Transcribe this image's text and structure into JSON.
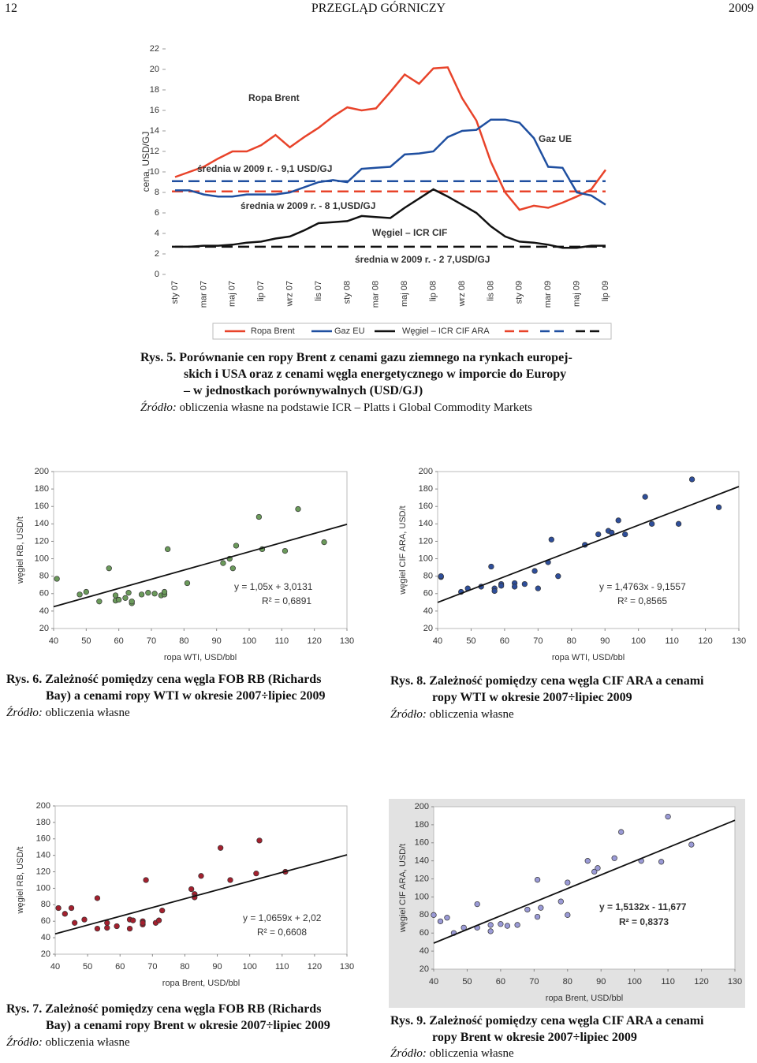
{
  "header": {
    "page": "12",
    "journal": "PRZEGLĄD GÓRNICZY",
    "year": "2009"
  },
  "figures": [
    {
      "label": "Rys. 5.",
      "caption": [
        "Porównanie cen ropy Brent z cenami gazu ziemnego na rynkach europej-",
        "skich i USA oraz z cenami węgla energetycznego w imporcie do Europy",
        "– w jednostkach porównywalnych (USD/GJ)"
      ],
      "source_label": "Źródło:",
      "source": "obliczenia własne na podstawie ICR – Platts i Global Commodity Markets",
      "chart_data": {
        "type": "line",
        "ylabel": "cena, USD/GJ",
        "categories": [
          "sty 07",
          null,
          "mar 07",
          null,
          "maj 07",
          null,
          "lip 07",
          null,
          "wrz 07",
          null,
          "lis 07",
          null,
          "sty 08",
          null,
          "mar 08",
          null,
          "maj 08",
          null,
          "lip 08",
          null,
          "wrz 08",
          null,
          "lis 08",
          null,
          "sty 09",
          null,
          "mar 09",
          null,
          "maj 09",
          null,
          "lip 09"
        ],
        "ylim": [
          0,
          22
        ],
        "yticks": [
          0,
          2,
          4,
          6,
          8,
          10,
          12,
          14,
          16,
          18,
          20,
          22
        ],
        "grid": false,
        "series": [
          {
            "name": "Ropa Brent",
            "color": "#e8432a",
            "values": [
              9.5,
              10,
              10.5,
              11.3,
              12,
              12,
              12.6,
              13.6,
              12.4,
              13.4,
              14.3,
              15.4,
              16.3,
              16,
              16.2,
              17.8,
              19.5,
              18.6,
              20.1,
              20.2,
              17.2,
              15,
              11,
              8,
              6.3,
              6.7,
              6.5,
              7,
              7.6,
              8.3,
              10.2
            ]
          },
          {
            "name": "Gaz EU",
            "color": "#1f4fa0",
            "values": [
              8.2,
              8.2,
              7.8,
              7.6,
              7.6,
              7.8,
              7.8,
              7.8,
              8,
              8.5,
              9,
              9.2,
              9,
              10.3,
              10.4,
              10.5,
              11.7,
              11.8,
              12,
              13.4,
              14,
              14.1,
              15.1,
              15.1,
              14.8,
              13.3,
              10.5,
              10.4,
              8,
              7.7,
              6.8
            ]
          },
          {
            "name": "Węgiel – ICR CIF ARA",
            "color": "#111111",
            "values": [
              2.7,
              2.7,
              2.8,
              2.8,
              2.9,
              3.1,
              3.2,
              3.5,
              3.7,
              4.3,
              5,
              5.1,
              5.2,
              5.7,
              5.6,
              5.5,
              6.5,
              7.4,
              8.3,
              7.6,
              6.8,
              6,
              4.7,
              3.7,
              3.2,
              3.1,
              2.9,
              2.6,
              2.6,
              2.8,
              2.8
            ]
          }
        ],
        "averages": [
          {
            "color": "#e8432a",
            "value": 8.1
          },
          {
            "color": "#1f4fa0",
            "value": 9.1
          },
          {
            "color": "#111111",
            "value": 2.7
          }
        ],
        "annotations": [
          {
            "text": "Ropa Brent",
            "color": "#e8432a"
          },
          {
            "text": "Gaz UE",
            "color": "#1f4fa0"
          },
          {
            "text": "średnia w 2009 r. - 9,1 USD/GJ",
            "color": "#c0302a"
          },
          {
            "text": "średnia w 2009 r. - 8 1,USD/GJ",
            "color": "#e8432a"
          },
          {
            "text": "Węgiel – ICR CIF",
            "color": "#111111"
          },
          {
            "text": "średnia w 2009 r. - 2 7,USD/GJ",
            "color": "#111111"
          }
        ]
      }
    },
    {
      "label": "Rys. 6.",
      "caption": [
        "Zależność pomiędzy cena węgla FOB RB (Richards",
        "Bay) a cenami ropy WTI w okresie 2007÷lipiec 2009"
      ],
      "source_label": "Źródło:",
      "source": "obliczenia własne",
      "chart_data": {
        "type": "scatter",
        "xlabel": "ropa WTI, USD/bbl",
        "ylabel": "węgiel RB, USD/t",
        "color": "#6b9a5b",
        "xlim": [
          40,
          130
        ],
        "xticks": [
          40,
          50,
          60,
          70,
          80,
          90,
          100,
          110,
          120,
          130
        ],
        "ylim": [
          20,
          200
        ],
        "yticks": [
          20,
          40,
          60,
          80,
          100,
          120,
          140,
          160,
          180,
          200
        ],
        "grid": false,
        "x": [
          41,
          48,
          50,
          54,
          57,
          59,
          59,
          60,
          62,
          63,
          64,
          64,
          67,
          69,
          71,
          73,
          74,
          74,
          75,
          81,
          92,
          94,
          95,
          96,
          103,
          104,
          111,
          115,
          123
        ],
        "y": [
          77,
          59,
          62,
          51,
          89,
          58,
          52,
          53,
          55,
          61,
          49,
          51,
          59,
          61,
          60,
          58,
          59,
          62,
          111,
          72,
          95,
          100,
          89,
          115,
          148,
          111,
          109,
          157,
          119
        ],
        "trendline": {
          "x": [
            40,
            130
          ],
          "y": [
            45,
            139.5
          ]
        },
        "equation": "y = 1,05x + 3,0131",
        "r2": "R² = 0,6891"
      }
    },
    {
      "label": "Rys. 8.",
      "caption": [
        "Zależność pomiędzy cena węgla CIF ARA a cenami",
        "ropy WTI w okresie 2007÷lipiec 2009"
      ],
      "source_label": "Źródło:",
      "source": "obliczenia własne",
      "chart_data": {
        "type": "scatter",
        "xlabel": "ropa WTI, USD/bbl",
        "ylabel": "węgiel CIF ARA, USD/t",
        "color": "#2e4e9a",
        "xlim": [
          40,
          130
        ],
        "xticks": [
          40,
          50,
          60,
          70,
          80,
          90,
          100,
          110,
          120,
          130
        ],
        "ylim": [
          20,
          200
        ],
        "yticks": [
          20,
          40,
          60,
          80,
          100,
          120,
          140,
          160,
          180,
          200
        ],
        "grid": false,
        "x": [
          41,
          41,
          47,
          49,
          53,
          56,
          57,
          57,
          59,
          59,
          63,
          63,
          66,
          69,
          70,
          73,
          74,
          76,
          84,
          88,
          91,
          92,
          94,
          96,
          102,
          104,
          112,
          116,
          124
        ],
        "y": [
          79,
          80,
          62,
          66,
          68,
          91,
          66,
          63,
          71,
          69,
          72,
          68,
          71,
          86,
          66,
          96,
          122,
          80,
          116,
          128,
          132,
          130,
          144,
          128,
          171,
          140,
          140,
          191,
          159
        ],
        "trendline": {
          "x": [
            40,
            130
          ],
          "y": [
            49.9,
            182.8
          ]
        },
        "equation": "y = 1,4763x - 9,1557",
        "r2": "R² = 0,8565"
      }
    },
    {
      "label": "Rys. 7.",
      "caption": [
        "Zależność pomiędzy cena węgla FOB RB (Richards",
        "Bay) a cenami ropy Brent w okresie 2007÷lipiec 2009"
      ],
      "source_label": "Źródło:",
      "source": "obliczenia własne",
      "chart_data": {
        "type": "scatter",
        "xlabel": "ropa Brent, USD/bbl",
        "ylabel": "węgiel RB, USD/t",
        "color": "#a3202e",
        "xlim": [
          40,
          130
        ],
        "xticks": [
          40,
          50,
          60,
          70,
          80,
          90,
          100,
          110,
          120,
          130
        ],
        "ylim": [
          20,
          200
        ],
        "yticks": [
          20,
          40,
          60,
          80,
          100,
          120,
          140,
          160,
          180,
          200
        ],
        "grid": false,
        "x": [
          41,
          43,
          45,
          46,
          49,
          53,
          53,
          56,
          56,
          59,
          63,
          63,
          64,
          67,
          67,
          67,
          68,
          71,
          72,
          73,
          82,
          83,
          83,
          85,
          91,
          94,
          102,
          103,
          111
        ],
        "y": [
          76,
          69,
          76,
          58,
          62,
          88,
          51,
          52,
          58,
          54,
          62,
          51,
          61,
          60,
          56,
          58,
          110,
          58,
          61,
          73,
          99,
          93,
          89,
          115,
          149,
          110,
          118,
          158,
          120
        ],
        "trendline": {
          "x": [
            40,
            130
          ],
          "y": [
            44.7,
            140.6
          ]
        },
        "equation": "y = 1,0659x + 2,02",
        "r2": "R² = 0,6608"
      }
    },
    {
      "label": "Rys. 9.",
      "caption": [
        "Zależność pomiędzy cena węgla CIF ARA a cenami",
        "ropy Brent w okresie 2007÷lipiec 2009"
      ],
      "source_label": "Źródło:",
      "source": "obliczenia własne",
      "chart_data": {
        "type": "scatter",
        "xlabel": "ropa Brent, USD/bbl",
        "ylabel": "węgiel CIF ARA, USD/t",
        "color": "#9a9ad6",
        "xlim": [
          40,
          130
        ],
        "xticks": [
          40,
          50,
          60,
          70,
          80,
          90,
          100,
          110,
          120,
          130
        ],
        "ylim": [
          20,
          200
        ],
        "yticks": [
          20,
          40,
          60,
          80,
          100,
          120,
          140,
          160,
          180,
          200
        ],
        "grid": false,
        "x": [
          40,
          42,
          44,
          46,
          49,
          53,
          53,
          57,
          57,
          60,
          62,
          65,
          68,
          71,
          71,
          72,
          78,
          80,
          80,
          86,
          88,
          89,
          94,
          96,
          102,
          108,
          110,
          117
        ],
        "y": [
          80,
          73,
          77,
          60,
          66,
          92,
          66,
          62,
          69,
          70,
          68,
          69,
          86,
          119,
          78,
          88,
          95,
          116,
          80,
          140,
          128,
          132,
          143,
          172,
          140,
          139,
          189,
          158
        ],
        "trendline": {
          "x": [
            40,
            130
          ],
          "y": [
            48.85,
            185
          ]
        },
        "equation": "y = 1,5132x - 11,677",
        "r2": "R² = 0,8373"
      }
    }
  ]
}
